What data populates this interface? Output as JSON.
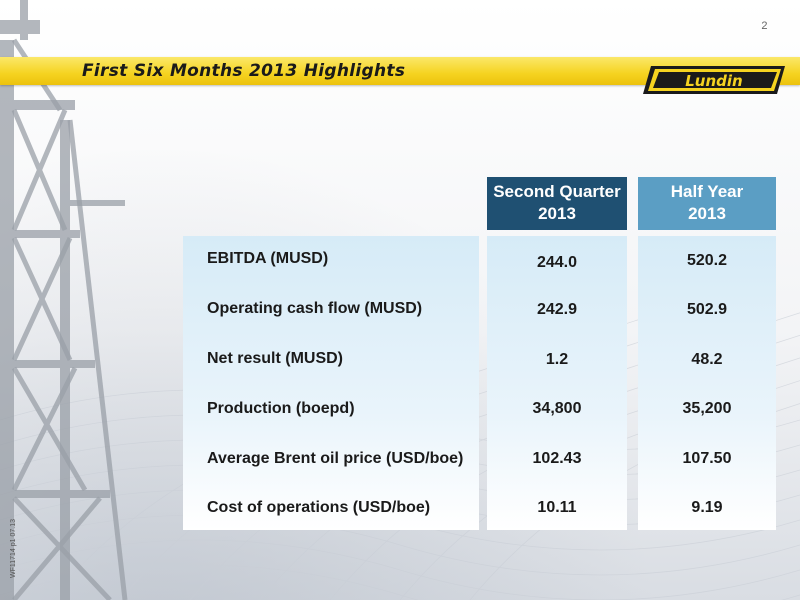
{
  "slide": {
    "page_number": "2",
    "title": "First Six Months 2013 Highlights",
    "logo_text": "Lundin",
    "side_reference": "WF11714 p1 07.13"
  },
  "table": {
    "headers": {
      "second_quarter": {
        "line1": "Second Quarter",
        "line2": "2013"
      },
      "half_year": {
        "line1": "Half Year",
        "line2": "2013"
      }
    },
    "rows": [
      {
        "label": "EBITDA (MUSD)",
        "q2": "244.0",
        "hy": "520.2"
      },
      {
        "label": "Operating cash flow (MUSD)",
        "q2": "242.9",
        "hy": "502.9"
      },
      {
        "label": "Net result (MUSD)",
        "q2": "1.2",
        "hy": "48.2"
      },
      {
        "label": "Production (boepd)",
        "q2": "34,800",
        "hy": "35,200"
      },
      {
        "label": "Average Brent oil price (USD/boe)",
        "q2": "102.43",
        "hy": "107.50"
      },
      {
        "label": "Cost of operations (USD/boe)",
        "q2": "10.11",
        "hy": "9.19"
      }
    ]
  },
  "colors": {
    "banner": "#f5d320",
    "header_q2": "#1f5072",
    "header_hy": "#5b9ec4",
    "panel": "#d6ebf7"
  }
}
